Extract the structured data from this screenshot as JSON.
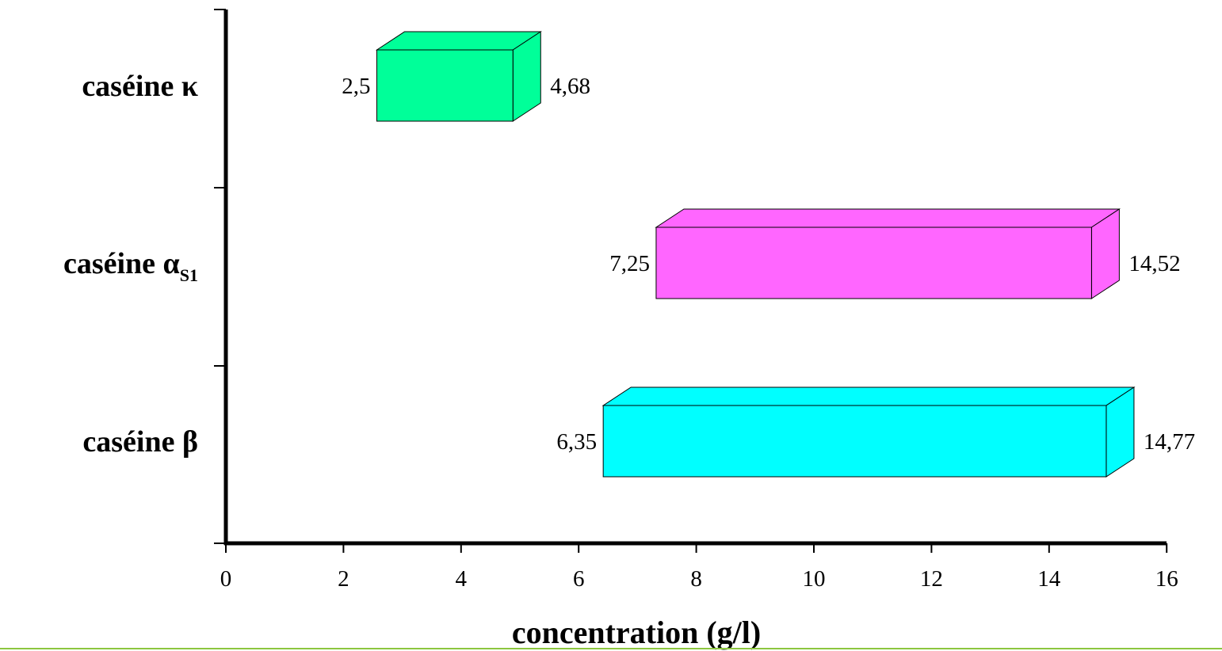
{
  "chart_data": {
    "type": "bar",
    "orientation": "horizontal",
    "style": "3d-floating-range",
    "categories": [
      {
        "name": "caséine κ",
        "prefix": "caséine κ",
        "subscript": ""
      },
      {
        "name": "caséine αS1",
        "prefix": "caséine α",
        "subscript": "S1"
      },
      {
        "name": "caséine β",
        "prefix": "caséine β",
        "subscript": ""
      }
    ],
    "ranges": [
      {
        "category": "caséine κ",
        "low": 2.5,
        "high": 4.68,
        "low_label": "2,5",
        "high_label": "4,68",
        "color": "#00ff99"
      },
      {
        "category": "caséine αS1",
        "low": 7.25,
        "high": 14.52,
        "low_label": "7,25",
        "high_label": "14,52",
        "color": "#ff66ff"
      },
      {
        "category": "caséine β",
        "low": 6.35,
        "high": 14.77,
        "low_label": "6,35",
        "high_label": "14,77",
        "color": "#00ffff"
      }
    ],
    "xlabel": "concentration (g/l)",
    "ylabel": "",
    "xlim": [
      0,
      16
    ],
    "xticks": [
      0,
      2,
      4,
      6,
      8,
      10,
      12,
      14,
      16
    ],
    "grid": false,
    "legend": "none"
  },
  "colors": {
    "axis": "#000000",
    "footer_rule": "#8cc63f"
  }
}
